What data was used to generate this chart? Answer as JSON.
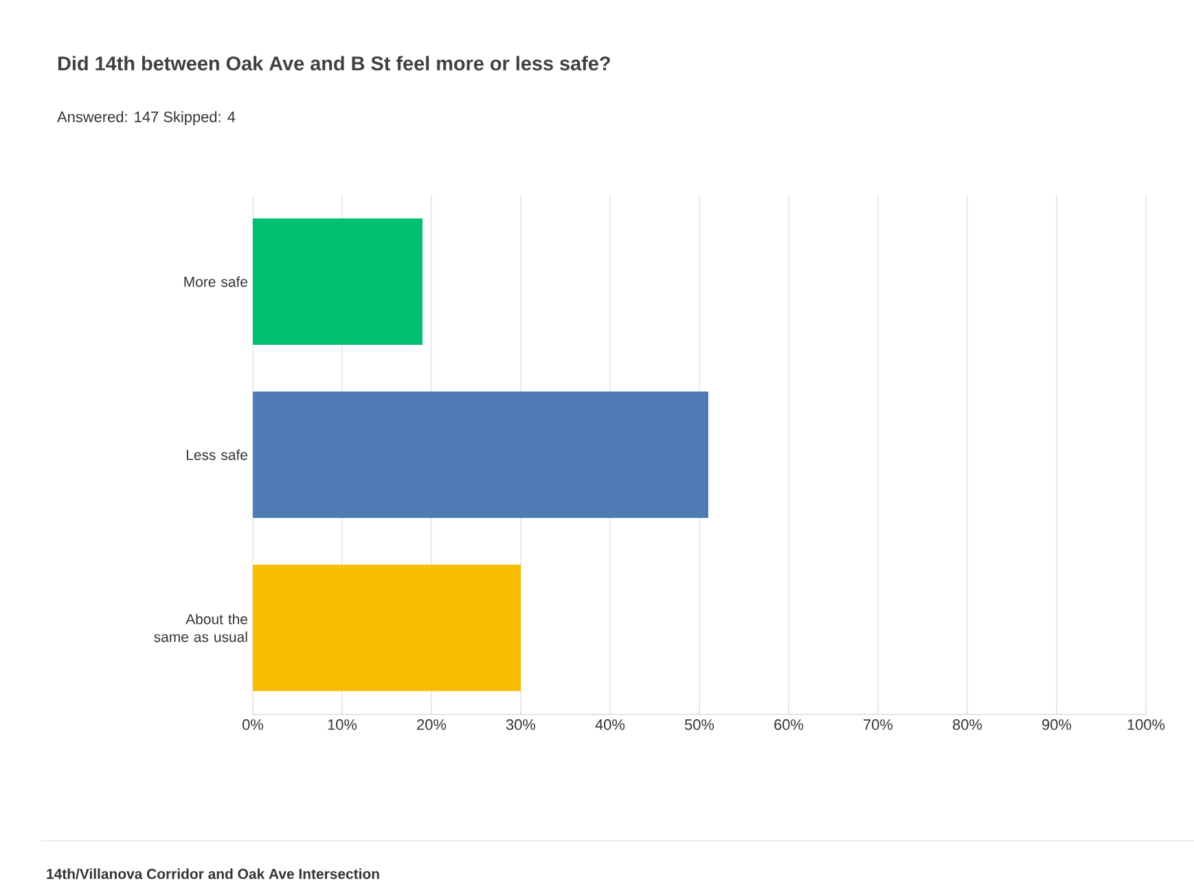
{
  "chart_data": {
    "type": "bar",
    "orientation": "horizontal",
    "title": "Did 14th between Oak Ave and B St feel more or less safe?",
    "subtitle": "Answered: 147    Skipped: 4",
    "categories": [
      "More safe",
      "Less safe",
      "About the same as usual"
    ],
    "values": [
      19,
      51,
      30
    ],
    "colors": [
      "#00bf6f",
      "#507cb6",
      "#f9be00"
    ],
    "xlim": [
      0,
      100
    ],
    "xticks": [
      {
        "value": 0,
        "label": "0%"
      },
      {
        "value": 10,
        "label": "10%"
      },
      {
        "value": 20,
        "label": "20%"
      },
      {
        "value": 30,
        "label": "30%"
      },
      {
        "value": 40,
        "label": "40%"
      },
      {
        "value": 50,
        "label": "50%"
      },
      {
        "value": 60,
        "label": "60%"
      },
      {
        "value": 70,
        "label": "70%"
      },
      {
        "value": 80,
        "label": "80%"
      },
      {
        "value": 90,
        "label": "90%"
      },
      {
        "value": 100,
        "label": "100%"
      }
    ],
    "grid": "x",
    "annotations": [
      "14th/Villanova Corridor and Oak Ave Intersection"
    ]
  }
}
